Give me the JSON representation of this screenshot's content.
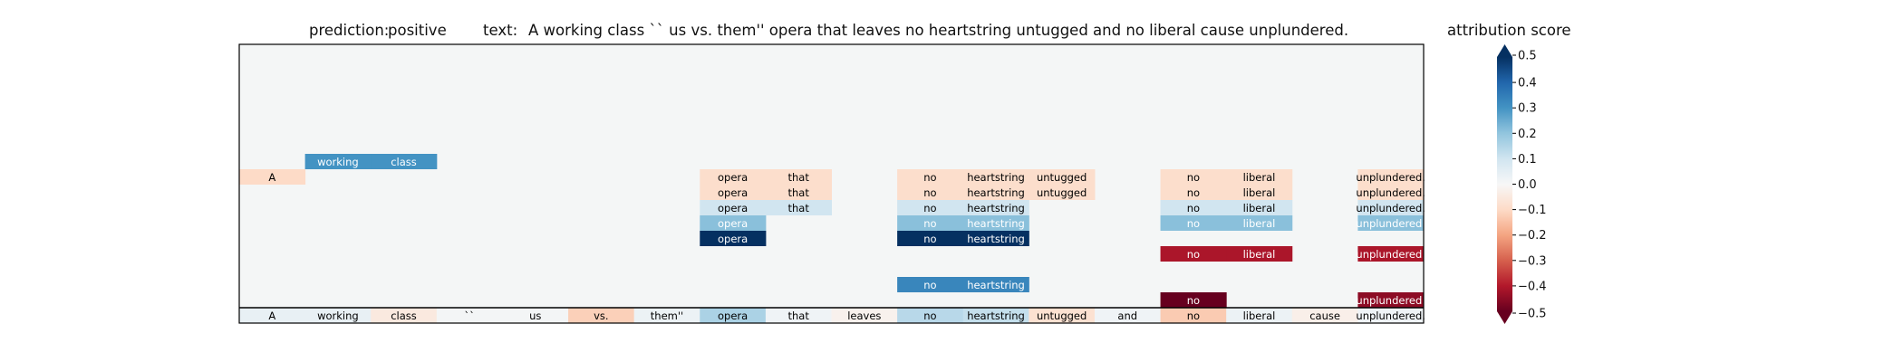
{
  "chart_data": {
    "type": "heatmap",
    "title": {
      "prediction_label": "prediction:",
      "prediction_value": "positive",
      "text_label": "text:",
      "text_value": "A working class `` us vs. them'' opera that leaves no heartstring untugged and no liberal cause unplundered."
    },
    "tokens": [
      "A",
      "working",
      "class",
      "``",
      "us",
      "vs.",
      "them''",
      "opera",
      "that",
      "leaves",
      "no",
      "heartstring",
      "untugged",
      "and",
      "no",
      "liberal",
      "cause",
      "unplundered."
    ],
    "token_scores": [
      0.04,
      0.04,
      -0.05,
      0.01,
      0.01,
      -0.12,
      0.03,
      0.16,
      0.02,
      -0.02,
      0.14,
      0.12,
      -0.08,
      0.02,
      -0.13,
      0.03,
      -0.03,
      0.02
    ],
    "rows_from_bottom": [
      {
        "level": 1,
        "spans": [
          {
            "tokens": [
              14
            ],
            "score": -0.5
          },
          {
            "tokens": [
              17
            ],
            "score": -0.45
          }
        ]
      },
      {
        "level": 2,
        "spans": [
          {
            "tokens": [
              10,
              11
            ],
            "score": 0.33
          }
        ]
      },
      {
        "level": 4,
        "spans": [
          {
            "tokens": [
              14,
              15
            ],
            "score": -0.41
          },
          {
            "tokens": [
              17
            ],
            "score": -0.41
          }
        ]
      },
      {
        "level": 5,
        "spans": [
          {
            "tokens": [
              7
            ],
            "score": 0.5
          },
          {
            "tokens": [
              10,
              11
            ],
            "score": 0.5
          }
        ]
      },
      {
        "level": 6,
        "spans": [
          {
            "tokens": [
              7
            ],
            "score": 0.21
          },
          {
            "tokens": [
              10,
              11
            ],
            "score": 0.21
          },
          {
            "tokens": [
              14,
              15
            ],
            "score": 0.21
          },
          {
            "tokens": [
              17
            ],
            "score": 0.21
          }
        ]
      },
      {
        "level": 7,
        "spans": [
          {
            "tokens": [
              7,
              8
            ],
            "score": 0.1
          },
          {
            "tokens": [
              10,
              11
            ],
            "score": 0.1
          },
          {
            "tokens": [
              14,
              15
            ],
            "score": 0.1
          },
          {
            "tokens": [
              17
            ],
            "score": 0.1
          }
        ]
      },
      {
        "level": 8,
        "spans": [
          {
            "tokens": [
              7,
              8
            ],
            "score": -0.09
          },
          {
            "tokens": [
              10,
              11,
              12
            ],
            "score": -0.09
          },
          {
            "tokens": [
              14,
              15
            ],
            "score": -0.09
          },
          {
            "tokens": [
              17
            ],
            "score": -0.09
          }
        ]
      },
      {
        "level": 9,
        "spans": [
          {
            "tokens": [
              0
            ],
            "score": -0.1
          },
          {
            "tokens": [
              7,
              8
            ],
            "score": -0.09
          },
          {
            "tokens": [
              10,
              11,
              12
            ],
            "score": -0.09
          },
          {
            "tokens": [
              14,
              15
            ],
            "score": -0.09
          },
          {
            "tokens": [
              17
            ],
            "score": -0.09
          }
        ]
      },
      {
        "level": 10,
        "spans": [
          {
            "tokens": [
              1,
              2
            ],
            "score": 0.3
          }
        ]
      }
    ],
    "colorbar": {
      "label": "attribution score",
      "colormap": "RdBu",
      "range": [
        -0.5,
        0.5
      ],
      "ticks": [
        -0.5,
        -0.4,
        -0.3,
        -0.2,
        -0.1,
        0.0,
        0.1,
        0.2,
        0.3,
        0.4,
        0.5
      ],
      "tick_labels": [
        "−0.5",
        "−0.4",
        "−0.3",
        "−0.2",
        "−0.1",
        "0.0",
        "0.1",
        "0.2",
        "0.3",
        "0.4",
        "0.5"
      ],
      "extend": "both"
    },
    "background_color": "#f4f6f6",
    "grid": false
  }
}
